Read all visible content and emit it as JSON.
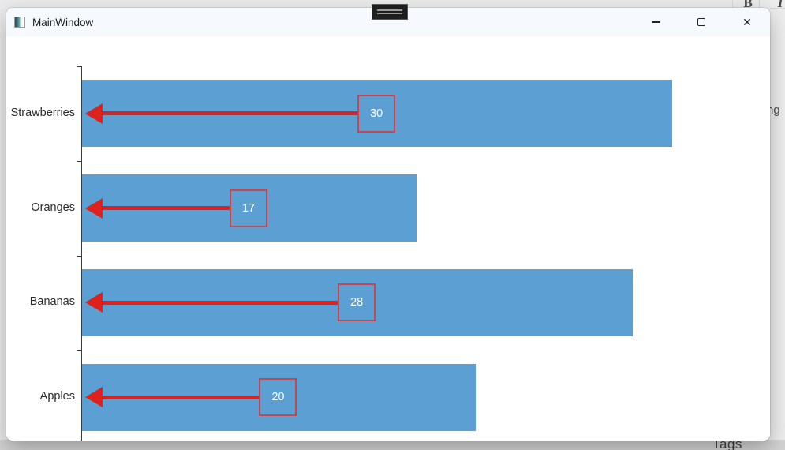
{
  "desktop": {
    "top_toolbar": {
      "bold": "B",
      "italic": "I"
    },
    "right_edge_text": "ng",
    "bottom_text": "Tags"
  },
  "window": {
    "title": "MainWindow",
    "controls": {
      "close": "✕"
    }
  },
  "chart_data": {
    "type": "bar",
    "orientation": "horizontal",
    "title": "",
    "xlabel": "",
    "ylabel": "",
    "categories": [
      "Strawberries",
      "Oranges",
      "Bananas",
      "Apples"
    ],
    "values": [
      30,
      17,
      28,
      20
    ],
    "value_labels": [
      "30",
      "17",
      "28",
      "20"
    ],
    "xlim": [
      0,
      35
    ],
    "xticks": [
      0,
      5,
      10,
      15,
      20,
      25,
      30,
      35
    ],
    "grid": false,
    "legend": "none",
    "bar_color": "#5B9FD3",
    "arrow_color": "#DD221E",
    "box_border_color": "#C9444C",
    "box_text_color": "#FFFFFF",
    "axis_color": "#3C3C3C",
    "annotation_note": "each bar has a red left-pointing arrow from a square value box at the bar midpoint toward the axis"
  }
}
